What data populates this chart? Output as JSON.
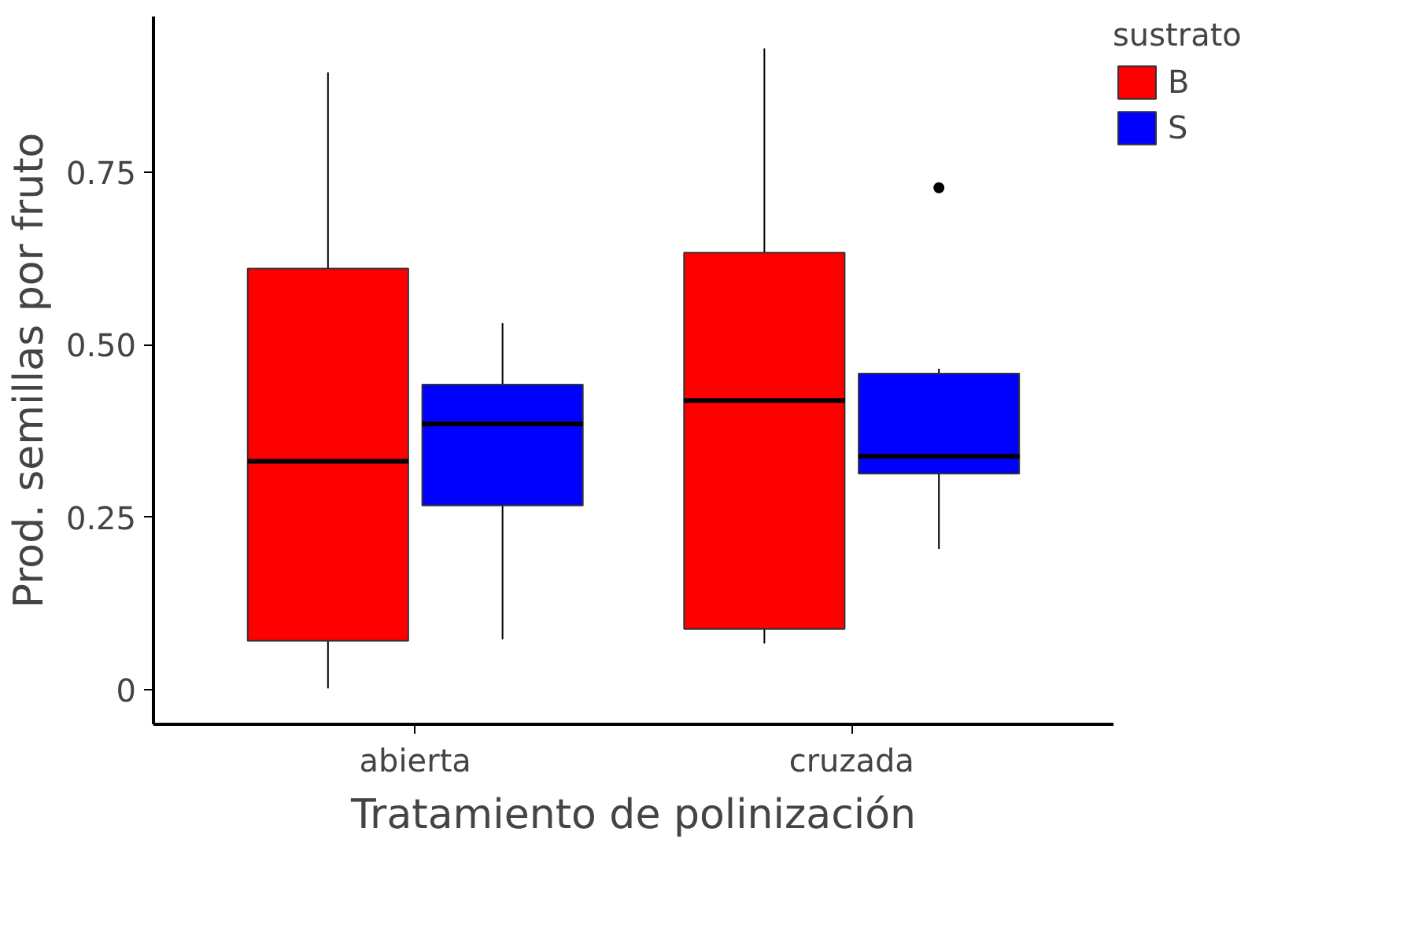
{
  "chart_data": {
    "type": "box",
    "xlabel": "Tratamiento de polinización",
    "ylabel": "Prod. semillas por fruto",
    "legend_title": "sustrato",
    "categories": [
      "abierta",
      "cruzada"
    ],
    "series": [
      {
        "name": "B",
        "color": "#ff0000",
        "boxes": [
          {
            "low": 0.002,
            "q1": 0.071,
            "median": 0.331,
            "q3": 0.61,
            "high": 0.894
          },
          {
            "low": 0.067,
            "q1": 0.088,
            "median": 0.419,
            "q3": 0.633,
            "high": 0.929
          }
        ]
      },
      {
        "name": "S",
        "color": "#0000ff",
        "boxes": [
          {
            "low": 0.073,
            "q1": 0.267,
            "median": 0.385,
            "q3": 0.442,
            "high": 0.531
          },
          {
            "low": 0.204,
            "q1": 0.313,
            "median": 0.338,
            "q3": 0.458,
            "high": 0.465,
            "outliers": [
              0.727
            ]
          }
        ]
      }
    ],
    "ylim": [
      -0.05,
      0.975
    ],
    "yticks": [
      {
        "value": 0,
        "label": "0"
      },
      0.25,
      {
        "value": 0.5,
        "label": "0.50"
      },
      0.75
    ],
    "grid": false,
    "legend": "right"
  }
}
